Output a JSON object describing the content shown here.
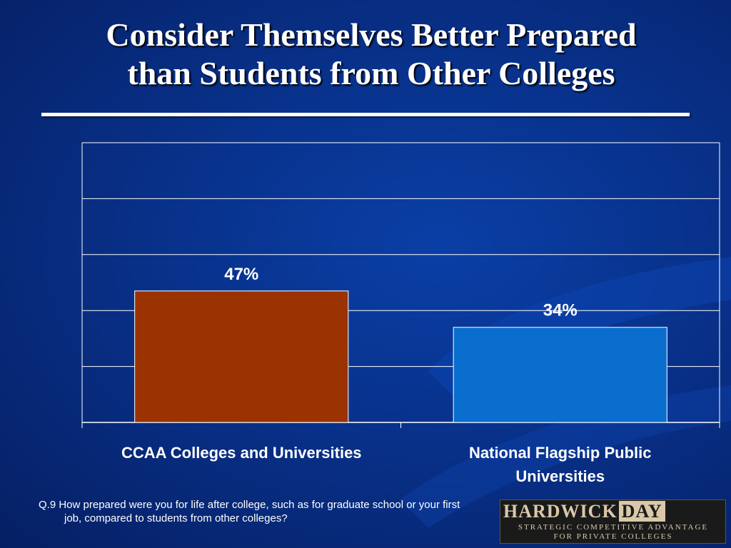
{
  "title_line1": "Consider Themselves Better Prepared",
  "title_line2": "than Students from Other Colleges",
  "footnote": "Q.9 How prepared were you for life after college, such as for graduate school or your first job, compared to students from other colleges?",
  "logo": {
    "word1": "HARDWICK",
    "word2": "DAY",
    "tagline1": "STRATEGIC COMPETITIVE ADVANTAGE",
    "tagline2": "FOR PRIVATE COLLEGES"
  },
  "colors": {
    "background": "#0a3a9a",
    "gridline": "#ffffff",
    "text": "#ffffff"
  },
  "chart_data": {
    "type": "bar",
    "categories": [
      "CCAA Colleges and Universities",
      "National Flagship Public Universities"
    ],
    "category_lines": [
      [
        "CCAA Colleges and Universities"
      ],
      [
        "National Flagship Public",
        "Universities"
      ]
    ],
    "values": [
      47,
      34
    ],
    "value_labels": [
      "47%",
      "34%"
    ],
    "bar_colors": [
      "#9a3300",
      "#0a6ecf"
    ],
    "ylim": [
      0,
      100
    ],
    "gridlines": [
      20,
      40,
      60,
      80,
      100
    ],
    "grid": true,
    "legend": "none",
    "title": "",
    "xlabel": "",
    "ylabel": ""
  }
}
